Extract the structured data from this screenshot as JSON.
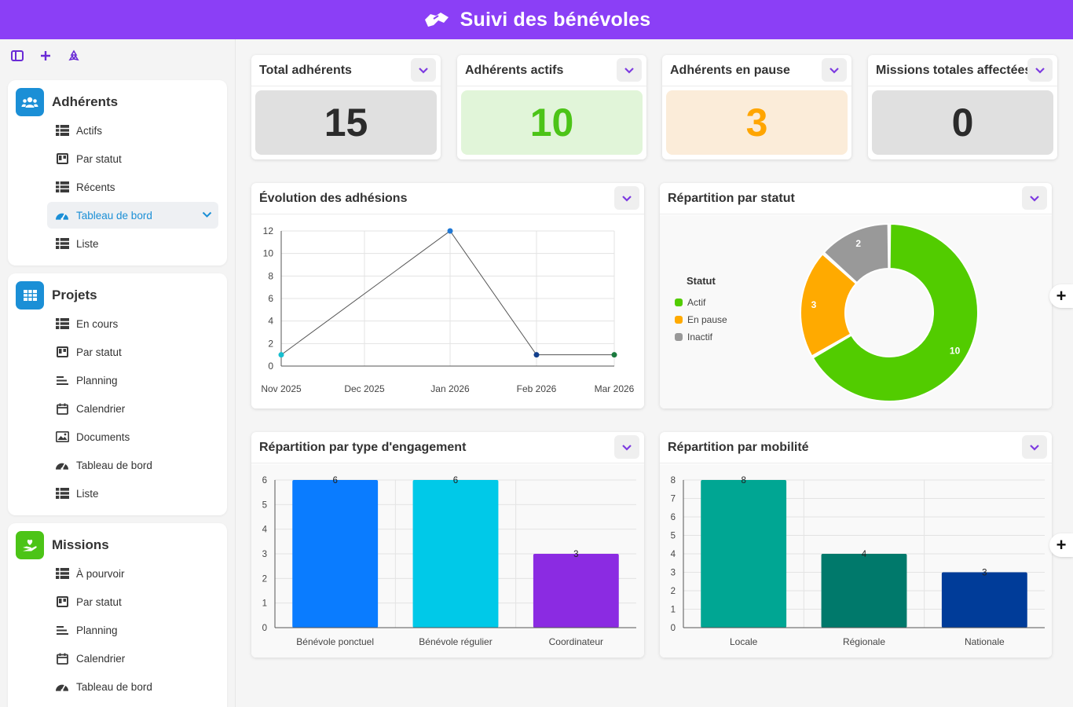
{
  "app": {
    "title": "Suivi des bénévoles"
  },
  "sidebar": {
    "sections": [
      {
        "title": "Adhérents",
        "color": "#1b8fd6",
        "icon": "users-icon",
        "items": [
          {
            "label": "Actifs",
            "icon": "table-icon"
          },
          {
            "label": "Par statut",
            "icon": "kanban-icon"
          },
          {
            "label": "Récents",
            "icon": "table-icon"
          },
          {
            "label": "Tableau de bord",
            "icon": "dashboard-icon",
            "active": true
          },
          {
            "label": "Liste",
            "icon": "table-icon"
          }
        ]
      },
      {
        "title": "Projets",
        "color": "#1b8fd6",
        "icon": "grid-icon",
        "items": [
          {
            "label": "En cours",
            "icon": "table-icon"
          },
          {
            "label": "Par statut",
            "icon": "kanban-icon"
          },
          {
            "label": "Planning",
            "icon": "gantt-icon"
          },
          {
            "label": "Calendrier",
            "icon": "calendar-icon"
          },
          {
            "label": "Documents",
            "icon": "image-icon"
          },
          {
            "label": "Tableau de bord",
            "icon": "dashboard-icon"
          },
          {
            "label": "Liste",
            "icon": "table-icon"
          }
        ]
      },
      {
        "title": "Missions",
        "color": "#4cc417",
        "icon": "hand-heart-icon",
        "items": [
          {
            "label": "À pourvoir",
            "icon": "table-icon"
          },
          {
            "label": "Par statut",
            "icon": "kanban-icon"
          },
          {
            "label": "Planning",
            "icon": "gantt-icon"
          },
          {
            "label": "Calendrier",
            "icon": "calendar-icon"
          },
          {
            "label": "Tableau de bord",
            "icon": "dashboard-icon"
          }
        ]
      }
    ]
  },
  "kpis": [
    {
      "title": "Total adhérents",
      "value": "15",
      "bg": "#e0e0e0",
      "color": "#2b2b2b"
    },
    {
      "title": "Adhérents actifs",
      "value": "10",
      "bg": "#e1f5d9",
      "color": "#4cc417"
    },
    {
      "title": "Adhérents en pause",
      "value": "3",
      "bg": "#fbecd9",
      "color": "#ffa500"
    },
    {
      "title": "Missions totales affectées",
      "value": "0",
      "bg": "#e0e0e0",
      "color": "#2b2b2b"
    }
  ],
  "charts_titles": {
    "evolution": "Évolution des adhésions",
    "statut": "Répartition par statut",
    "engagement": "Répartition par type d'engagement",
    "mobilite": "Répartition par mobilité"
  },
  "chart_data": [
    {
      "type": "line",
      "title": "Évolution des adhésions",
      "x": [
        "Nov 2025",
        "Dec 2025",
        "Jan 2026",
        "Feb 2026",
        "Mar 2026"
      ],
      "points": [
        {
          "x": "Nov 2025",
          "y": 1,
          "color": "#17becf"
        },
        {
          "x": "Jan 2026",
          "y": 12,
          "color": "#1f77d4"
        },
        {
          "x": "Feb 2026",
          "y": 1,
          "color": "#123f8c"
        },
        {
          "x": "Mar 2026",
          "y": 1,
          "color": "#1b7a3e"
        }
      ],
      "ylim": [
        0,
        12
      ],
      "yticks": [
        0,
        2,
        4,
        6,
        8,
        10,
        12
      ],
      "grid": true
    },
    {
      "type": "pie",
      "title": "Répartition par statut",
      "legend_title": "Statut",
      "legend_position": "left",
      "slices": [
        {
          "label": "Actif",
          "value": 10,
          "color": "#52cc00"
        },
        {
          "label": "En pause",
          "value": 3,
          "color": "#ffaa00"
        },
        {
          "label": "Inactif",
          "value": 2,
          "color": "#999999"
        }
      ]
    },
    {
      "type": "bar",
      "title": "Répartition par type d'engagement",
      "categories": [
        "Bénévole ponctuel",
        "Bénévole régulier",
        "Coordinateur"
      ],
      "values": [
        6,
        6,
        3
      ],
      "colors": [
        "#0a7cff",
        "#00c9e8",
        "#8b2be2"
      ],
      "ylim": [
        0,
        6
      ],
      "yticks": [
        0,
        1,
        2,
        3,
        4,
        5,
        6
      ],
      "grid": true
    },
    {
      "type": "bar",
      "title": "Répartition par mobilité",
      "categories": [
        "Locale",
        "Régionale",
        "Nationale"
      ],
      "values": [
        8,
        4,
        3
      ],
      "colors": [
        "#00a693",
        "#00796b",
        "#003c99"
      ],
      "ylim": [
        0,
        8
      ],
      "yticks": [
        0,
        1,
        2,
        3,
        4,
        5,
        6,
        7,
        8
      ],
      "grid": true
    }
  ]
}
